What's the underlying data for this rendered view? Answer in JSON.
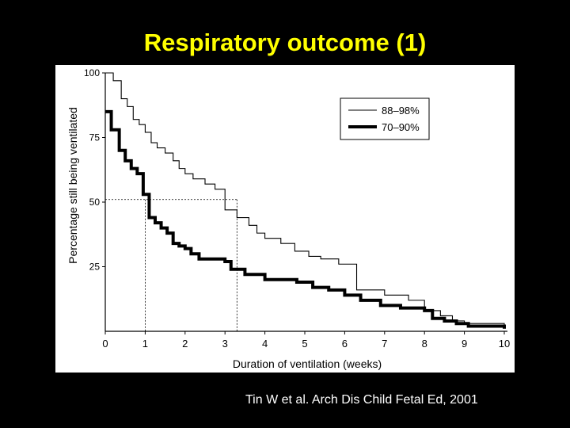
{
  "slide": {
    "title": "Respiratory outcome (1)",
    "citation": "Tin W et al. Arch Dis Child Fetal Ed, 2001",
    "title_color": "#ffff00",
    "background": "#000000"
  },
  "chart_data": {
    "type": "line",
    "title": "",
    "xlabel": "Duration of ventilation (weeks)",
    "ylabel": "Percentage still being ventilated",
    "xlim": [
      0,
      10
    ],
    "ylim": [
      0,
      100
    ],
    "xticks": [
      "0",
      "1",
      "2",
      "3",
      "4",
      "5",
      "6",
      "7",
      "8",
      "9",
      "10"
    ],
    "yticks": [
      "25",
      "50",
      "75",
      "100"
    ],
    "legend_position": "top-right",
    "step": true,
    "series": [
      {
        "name": "88–98%",
        "style": "thin",
        "x": [
          0,
          0.2,
          0.4,
          0.55,
          0.7,
          0.85,
          1.0,
          1.15,
          1.3,
          1.5,
          1.7,
          1.85,
          2.0,
          2.2,
          2.5,
          2.75,
          3.0,
          3.3,
          3.6,
          3.8,
          4.0,
          4.4,
          4.75,
          5.1,
          5.4,
          5.85,
          6.3,
          7.0,
          7.6,
          8.0,
          8.4,
          8.7,
          9.0,
          10.0
        ],
        "y": [
          100,
          97,
          90,
          87,
          82,
          80,
          77,
          73,
          71,
          69,
          66,
          63,
          61,
          59,
          57,
          55,
          47,
          44,
          41,
          38,
          36,
          34,
          31,
          29,
          28,
          26,
          16,
          14,
          12,
          8,
          6,
          4,
          3,
          2
        ]
      },
      {
        "name": "70–90%",
        "style": "thick",
        "x": [
          0,
          0.15,
          0.35,
          0.5,
          0.65,
          0.8,
          0.95,
          1.1,
          1.25,
          1.4,
          1.55,
          1.7,
          1.85,
          2.0,
          2.15,
          2.35,
          3.0,
          3.15,
          3.5,
          4.0,
          4.8,
          5.2,
          5.6,
          6.0,
          6.4,
          6.9,
          7.4,
          8.0,
          8.2,
          8.5,
          8.8,
          9.1,
          10.0
        ],
        "y": [
          85,
          78,
          70,
          66,
          63,
          61,
          53,
          44,
          42,
          40,
          38,
          34,
          33,
          32,
          30,
          28,
          27,
          24,
          22,
          20,
          19,
          17,
          16,
          14,
          12,
          10,
          9,
          8,
          5,
          4,
          3,
          2,
          1
        ]
      }
    ],
    "reference_lines": [
      {
        "y": 51,
        "x_end": 3.3
      },
      {
        "x": 1.0,
        "y_end": 51
      },
      {
        "x": 3.3,
        "y_end": 51
      }
    ]
  }
}
